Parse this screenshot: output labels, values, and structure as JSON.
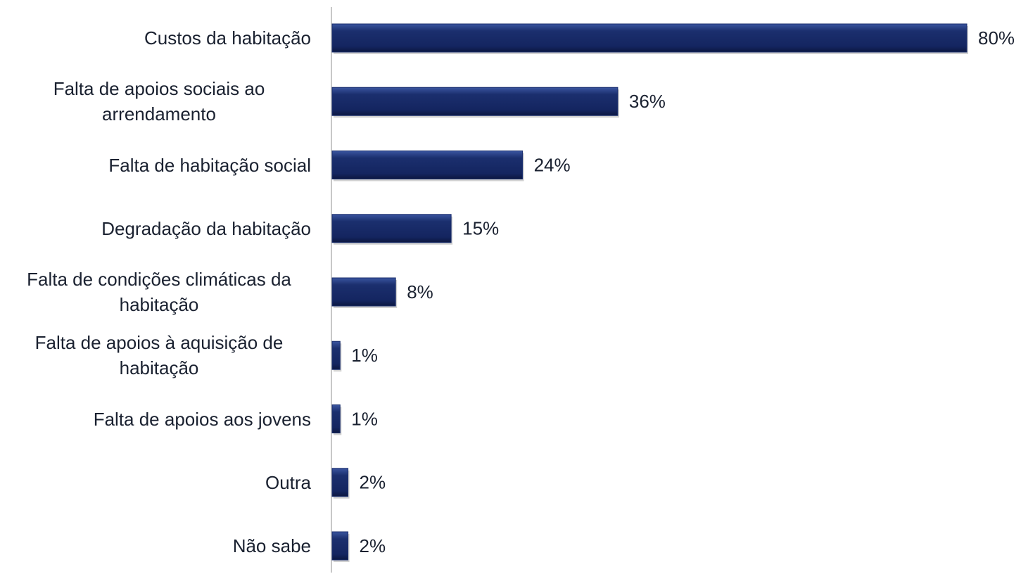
{
  "chart_data": {
    "type": "bar",
    "orientation": "horizontal",
    "categories": [
      "Custos da habitação",
      "Falta de apoios sociais ao arrendamento",
      "Falta de habitação social",
      "Degradação da habitação",
      "Falta de condições climáticas da habitação",
      "Falta de apoios à aquisição de habitação",
      "Falta de apoios aos jovens",
      "Outra",
      "Não sabe"
    ],
    "values": [
      80,
      36,
      24,
      15,
      8,
      1,
      1,
      2,
      2
    ],
    "value_labels": [
      "80%",
      "36%",
      "24%",
      "15%",
      "8%",
      "1%",
      "1%",
      "2%",
      "2%"
    ],
    "color": "#1b2f6e"
  }
}
